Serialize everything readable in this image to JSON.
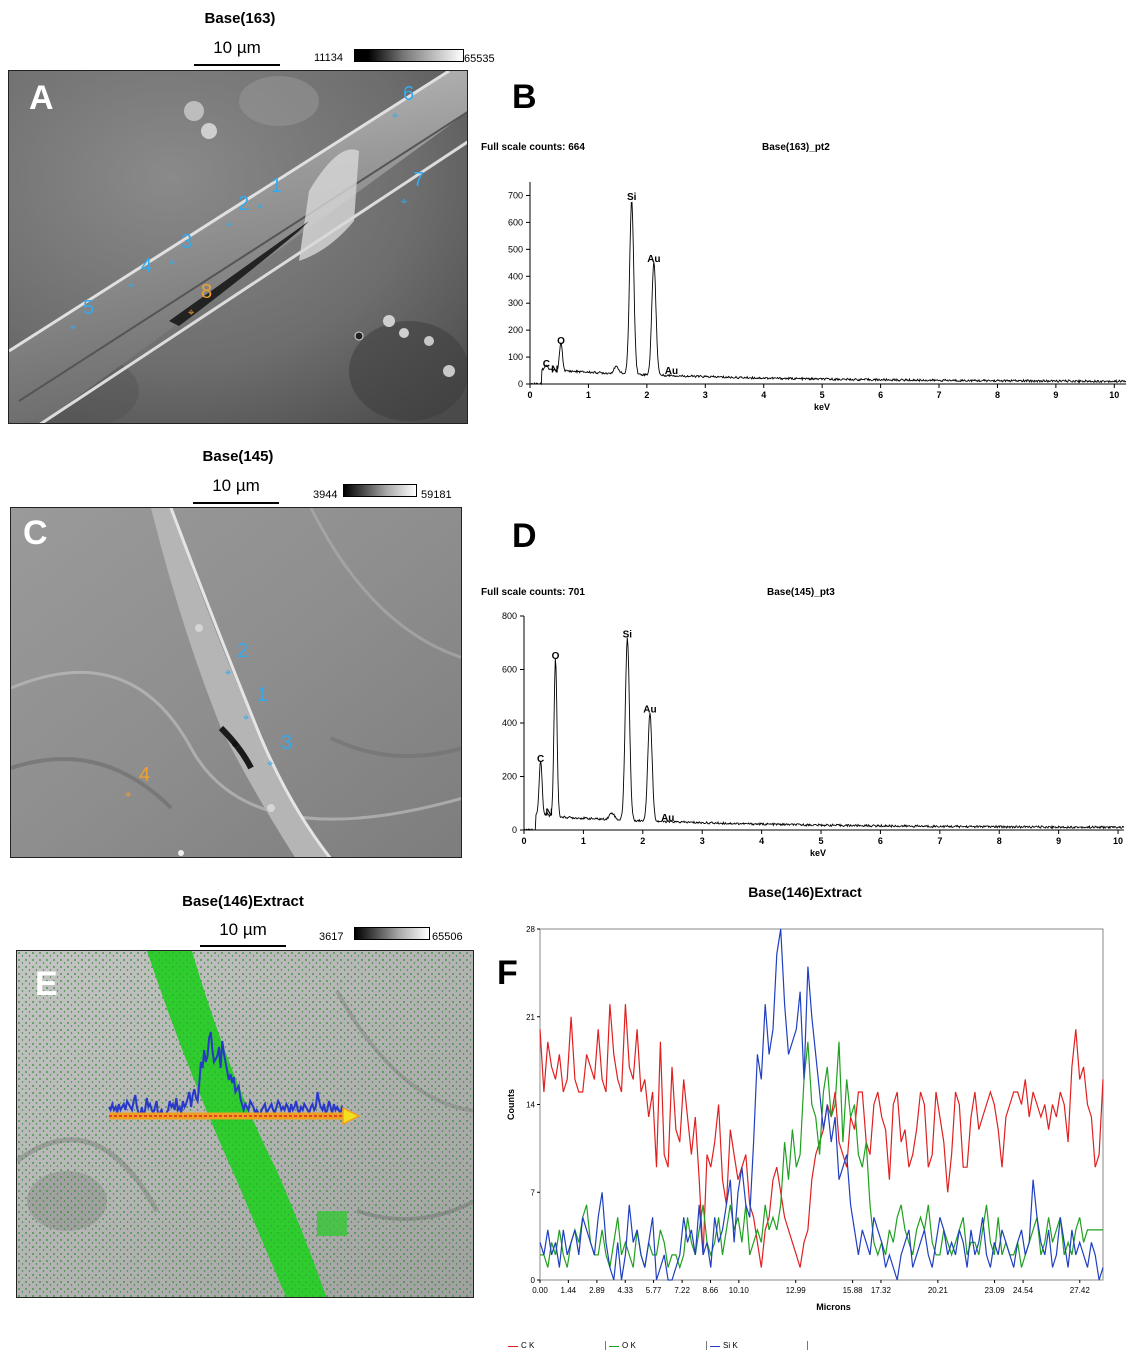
{
  "panelA": {
    "title": "Base(163)",
    "scale_label": "10 µm",
    "gray_min": "11134",
    "gray_max": "65535",
    "letter": "A",
    "points": [
      {
        "label": "1",
        "color": "#33aaee"
      },
      {
        "label": "2",
        "color": "#33aaee"
      },
      {
        "label": "3",
        "color": "#33aaee"
      },
      {
        "label": "4",
        "color": "#33aaee"
      },
      {
        "label": "5",
        "color": "#33aaee"
      },
      {
        "label": "6",
        "color": "#33aaee"
      },
      {
        "label": "7",
        "color": "#33aaee"
      },
      {
        "label": "8",
        "color": "#f0a030"
      }
    ]
  },
  "panelB": {
    "letter": "B",
    "full_scale": "Full scale counts: 664",
    "spectrum_name": "Base(163)_pt2",
    "xlabel": "keV"
  },
  "panelC": {
    "title": "Base(145)",
    "scale_label": "10 µm",
    "gray_min": "3944",
    "gray_max": "59181",
    "letter": "C",
    "points": [
      {
        "label": "1",
        "color": "#33aaee"
      },
      {
        "label": "2",
        "color": "#33aaee"
      },
      {
        "label": "3",
        "color": "#33aaee"
      },
      {
        "label": "4",
        "color": "#f0a030"
      }
    ]
  },
  "panelD": {
    "letter": "D",
    "full_scale": "Full scale counts: 701",
    "spectrum_name": "Base(145)_pt3",
    "xlabel": "keV"
  },
  "panelE": {
    "title": "Base(146)Extract",
    "scale_label": "10 µm",
    "gray_min": "3617",
    "gray_max": "65506",
    "letter": "E"
  },
  "panelF": {
    "letter": "F",
    "title": "Base(146)Extract",
    "ylabel": "Counts",
    "xlabel": "Microns",
    "legend": [
      {
        "name": "C K",
        "color": "#e02020"
      },
      {
        "name": "O K",
        "color": "#20a020"
      },
      {
        "name": "Si K",
        "color": "#2040c0"
      }
    ]
  },
  "chart_data": [
    {
      "type": "line",
      "title": "Base(163)_pt2",
      "xlabel": "keV",
      "ylabel": "",
      "xlim": [
        0,
        10.2
      ],
      "ylim": [
        0,
        750
      ],
      "xticks": [
        "0",
        "1",
        "2",
        "3",
        "4",
        "5",
        "6",
        "7",
        "8",
        "9",
        "10"
      ],
      "yticks": [
        "0",
        "100",
        "200",
        "300",
        "400",
        "500",
        "600",
        "700"
      ],
      "peaks": [
        {
          "label": "C",
          "x": 0.28,
          "y": 45
        },
        {
          "label": "N",
          "x": 0.39,
          "y": 25
        },
        {
          "label": "O",
          "x": 0.53,
          "y": 130
        },
        {
          "label": "Si",
          "x": 1.74,
          "y": 664
        },
        {
          "label": "Au",
          "x": 2.12,
          "y": 435
        },
        {
          "label": "Au",
          "x": 2.42,
          "y": 18
        }
      ]
    },
    {
      "type": "line",
      "title": "Base(145)_pt3",
      "xlabel": "keV",
      "ylabel": "",
      "xlim": [
        0,
        10.1
      ],
      "ylim": [
        0,
        800
      ],
      "xticks": [
        "0",
        "1",
        "2",
        "3",
        "4",
        "5",
        "6",
        "7",
        "8",
        "9",
        "10"
      ],
      "yticks": [
        "0",
        "200",
        "400",
        "600",
        "800"
      ],
      "peaks": [
        {
          "label": "C",
          "x": 0.28,
          "y": 235
        },
        {
          "label": "N",
          "x": 0.39,
          "y": 35
        },
        {
          "label": "O",
          "x": 0.53,
          "y": 620
        },
        {
          "label": "Si",
          "x": 1.74,
          "y": 701
        },
        {
          "label": "Au",
          "x": 2.12,
          "y": 420
        },
        {
          "label": "Au",
          "x": 2.42,
          "y": 15
        }
      ]
    },
    {
      "type": "line",
      "title": "Base(146)Extract",
      "xlabel": "Microns",
      "ylabel": "Counts",
      "xlim": [
        0,
        28.6
      ],
      "ylim": [
        0,
        28
      ],
      "xticks": [
        "0.00",
        "1.44",
        "2.89",
        "4.33",
        "5.77",
        "7.22",
        "8.66",
        "10.10",
        "12.99",
        "15.88",
        "17.32",
        "20.21",
        "23.09",
        "24.54",
        "27.42"
      ],
      "yticks": [
        "0",
        "7",
        "14",
        "21",
        "28"
      ],
      "series": [
        {
          "name": "C K",
          "values": [
            20,
            15,
            19,
            17,
            16,
            18,
            15,
            16,
            21,
            16,
            15,
            15,
            18,
            17,
            16,
            20,
            16,
            15,
            22,
            18,
            16,
            15,
            22,
            17,
            16,
            20,
            15,
            16,
            13,
            15,
            9,
            19,
            10,
            9,
            17,
            12,
            11,
            16,
            13,
            10,
            13,
            8,
            2,
            10,
            9,
            11,
            14,
            8,
            6,
            12,
            10,
            8,
            9,
            10,
            6,
            5,
            3,
            1,
            4,
            5,
            8,
            9,
            7,
            5,
            4,
            3,
            2,
            1,
            3,
            4,
            8,
            10,
            11,
            12,
            14,
            13,
            15,
            11,
            10,
            9,
            13,
            12,
            15,
            15,
            11,
            10,
            14,
            15,
            13,
            12,
            8,
            14,
            15,
            11,
            12,
            9,
            10,
            12,
            15,
            14,
            9,
            10,
            15,
            13,
            11,
            7,
            10,
            15,
            14,
            9,
            9,
            13,
            15,
            12,
            13,
            14,
            15,
            14,
            12,
            9,
            13,
            14,
            15,
            15,
            14,
            16,
            13,
            15,
            14,
            13,
            14,
            12,
            14,
            13,
            15,
            14,
            11,
            17,
            20,
            16,
            17,
            14,
            13,
            9,
            10,
            16
          ]
        },
        {
          "name": "O K",
          "values": [
            2,
            2,
            1,
            3,
            2,
            4,
            2,
            1,
            3,
            4,
            3,
            5,
            6,
            3,
            2,
            2,
            4,
            2,
            1,
            3,
            5,
            2,
            3,
            2,
            1,
            4,
            2,
            1,
            3,
            2,
            2,
            4,
            3,
            1,
            2,
            2,
            1,
            2,
            5,
            3,
            2,
            4,
            6,
            3,
            2,
            3,
            5,
            2,
            4,
            6,
            4,
            5,
            3,
            6,
            2,
            3,
            4,
            3,
            6,
            4,
            5,
            4,
            6,
            11,
            8,
            12,
            9,
            10,
            16,
            19,
            14,
            13,
            10,
            15,
            17,
            13,
            14,
            19,
            11,
            16,
            13,
            14,
            10,
            9,
            11,
            6,
            3,
            2,
            3,
            2,
            4,
            3,
            5,
            6,
            4,
            3,
            2,
            4,
            5,
            4,
            6,
            3,
            2,
            2,
            4,
            3,
            2,
            3,
            4,
            5,
            2,
            3,
            3,
            2,
            4,
            6,
            3,
            2,
            5,
            2,
            3,
            2,
            2,
            3,
            1,
            2,
            3,
            4,
            5,
            2,
            3,
            5,
            3,
            4,
            5,
            2,
            3,
            2,
            4,
            5,
            3,
            4,
            4,
            4,
            4,
            4
          ]
        },
        {
          "name": "Si K",
          "values": [
            3,
            2,
            4,
            2,
            3,
            1,
            4,
            2,
            3,
            4,
            2,
            5,
            4,
            3,
            2,
            5,
            7,
            3,
            1,
            0,
            3,
            0,
            2,
            6,
            3,
            4,
            2,
            1,
            3,
            5,
            0,
            1,
            2,
            0,
            0,
            1,
            2,
            5,
            3,
            4,
            2,
            6,
            2,
            3,
            1,
            5,
            3,
            4,
            6,
            8,
            3,
            7,
            9,
            6,
            5,
            11,
            18,
            16,
            22,
            18,
            20,
            26,
            28,
            22,
            18,
            19,
            20,
            23,
            16,
            25,
            21,
            18,
            15,
            12,
            14,
            11,
            13,
            8,
            9,
            10,
            6,
            4,
            2,
            4,
            3,
            2,
            5,
            4,
            3,
            1,
            2,
            1,
            0,
            2,
            3,
            4,
            1,
            2,
            3,
            4,
            2,
            1,
            3,
            5,
            4,
            2,
            3,
            2,
            4,
            3,
            1,
            4,
            2,
            3,
            5,
            2,
            1,
            3,
            2,
            4,
            3,
            2,
            1,
            3,
            4,
            2,
            3,
            8,
            5,
            3,
            2,
            4,
            1,
            2,
            5,
            3,
            1,
            4,
            2,
            3,
            2,
            1,
            3,
            2,
            0,
            1
          ]
        }
      ]
    }
  ]
}
